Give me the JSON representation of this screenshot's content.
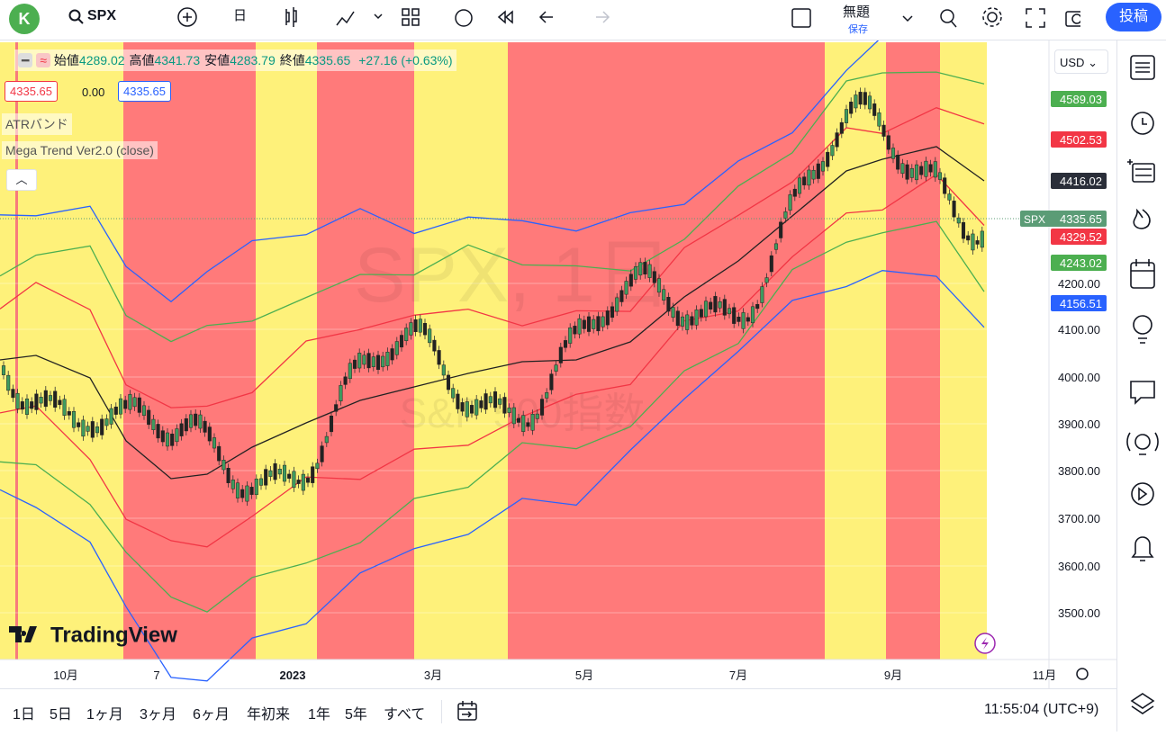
{
  "toolbar": {
    "avatar": "K",
    "symbol": "SPX",
    "interval": "日",
    "layout_name": "無題",
    "save_state": "保存",
    "publish": "投稿"
  },
  "legend": {
    "ohlc": [
      {
        "label": "始値",
        "value": "4289.02"
      },
      {
        "label": "高値",
        "value": "4341.73"
      },
      {
        "label": "安値",
        "value": "4283.79"
      },
      {
        "label": "終値",
        "value": "4335.65"
      }
    ],
    "change": "+27.16 (+0.63%)",
    "sell": "4335.65",
    "spread": "0.00",
    "buy": "4335.65",
    "indicators": [
      "ATRバンド",
      "Mega Trend Ver2.0 (close)"
    ]
  },
  "watermark": {
    "symbol": "SPX, 1日",
    "name": "S&P 500指数"
  },
  "logo": "TradingView",
  "price_axis": {
    "currency": "USD",
    "labels": [
      "4200.00",
      "4100.00",
      "4000.00",
      "3900.00",
      "3800.00",
      "3700.00",
      "3600.00",
      "3500.00"
    ],
    "tags": [
      {
        "text": "4589.03",
        "color": "#4caf50"
      },
      {
        "text": "4502.53",
        "color": "#f23645"
      },
      {
        "text": "4416.02",
        "color": "#2a2e39"
      },
      {
        "text": "4329.52",
        "color": "#f23645"
      },
      {
        "text": "4243.02",
        "color": "#4caf50"
      },
      {
        "text": "4156.51",
        "color": "#2962ff"
      }
    ],
    "symbol_tag": {
      "name": "SPX",
      "price": "4335.65",
      "color": "#5b9c76"
    }
  },
  "time_axis": [
    "10月",
    "7",
    "2023",
    "3月",
    "5月",
    "7月",
    "9月",
    "11月"
  ],
  "bottom_bar": {
    "ranges": [
      "1日",
      "5日",
      "1ヶ月",
      "3ヶ月",
      "6ヶ月",
      "年初来",
      "1年",
      "5年",
      "すべて"
    ],
    "clock": "11:55:04 (UTC+9)"
  }
}
